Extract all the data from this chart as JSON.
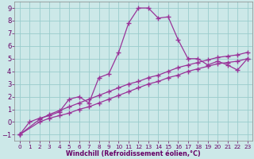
{
  "xlabel": "Windchill (Refroidissement éolien,°C)",
  "background_color": "#cce8e8",
  "grid_color": "#99cccc",
  "line_color": "#993399",
  "xlim": [
    -0.5,
    23.5
  ],
  "ylim": [
    -1.5,
    9.5
  ],
  "xticks": [
    0,
    1,
    2,
    3,
    4,
    5,
    6,
    7,
    8,
    9,
    10,
    11,
    12,
    13,
    14,
    15,
    16,
    17,
    18,
    19,
    20,
    21,
    22,
    23
  ],
  "yticks": [
    -1,
    0,
    1,
    2,
    3,
    4,
    5,
    6,
    7,
    8,
    9
  ],
  "curve1_x": [
    0,
    1,
    2,
    3,
    4,
    5,
    6,
    7,
    8,
    9,
    10,
    11,
    12,
    13,
    14,
    15,
    16,
    17,
    18,
    19,
    20,
    21,
    22,
    23
  ],
  "curve1_y": [
    -1.0,
    0.0,
    0.3,
    0.5,
    0.8,
    1.8,
    2.0,
    1.5,
    3.5,
    3.8,
    5.5,
    7.8,
    9.0,
    9.0,
    8.2,
    8.3,
    6.5,
    5.0,
    5.0,
    4.5,
    4.8,
    4.5,
    4.1,
    5.0
  ],
  "curve2_x": [
    0,
    2,
    3,
    4,
    5,
    6,
    7,
    8,
    9,
    10,
    11,
    12,
    13,
    14,
    15,
    16,
    17,
    18,
    19,
    20,
    21,
    22,
    23
  ],
  "curve2_y": [
    -1.0,
    0.0,
    0.3,
    0.5,
    0.7,
    1.0,
    1.2,
    1.5,
    1.8,
    2.1,
    2.4,
    2.7,
    3.0,
    3.2,
    3.5,
    3.7,
    4.0,
    4.2,
    4.4,
    4.6,
    4.7,
    4.8,
    5.0
  ],
  "curve3_x": [
    0,
    2,
    3,
    4,
    5,
    6,
    7,
    8,
    9,
    10,
    11,
    12,
    13,
    14,
    15,
    16,
    17,
    18,
    19,
    20,
    21,
    22,
    23
  ],
  "curve3_y": [
    -1.0,
    0.2,
    0.6,
    0.9,
    1.2,
    1.5,
    1.8,
    2.1,
    2.4,
    2.7,
    3.0,
    3.2,
    3.5,
    3.7,
    4.0,
    4.3,
    4.5,
    4.7,
    4.9,
    5.1,
    5.2,
    5.3,
    5.5
  ],
  "tick_color": "#660066",
  "xlabel_fontsize": 5.8,
  "tick_fontsize_x": 5.2,
  "tick_fontsize_y": 6.0
}
